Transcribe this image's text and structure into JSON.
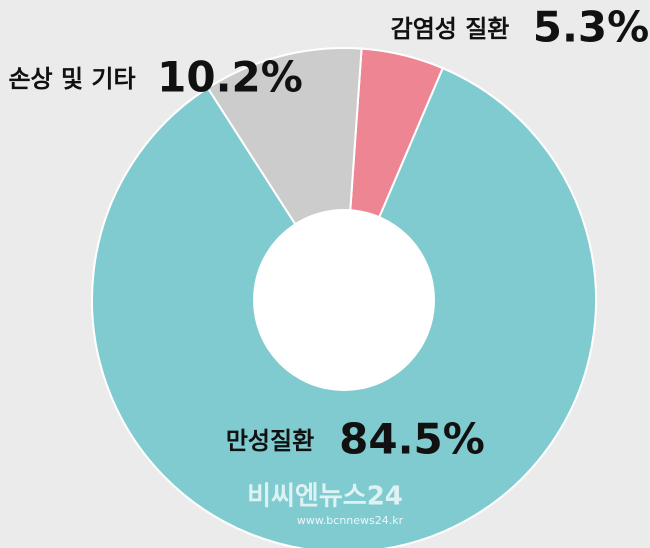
{
  "chart_data": {
    "type": "donut",
    "categories": [
      "감염성 질환",
      "만성질환",
      "손상 및 기타"
    ],
    "values": [
      5.3,
      84.5,
      10.2
    ],
    "value_labels": [
      "5.3%",
      "84.5%",
      "10.2%"
    ],
    "colors": [
      "#ee8593",
      "#80cbcf",
      "#cccccc"
    ]
  },
  "watermark": {
    "name": "비씨엔뉴스24",
    "url": "www.bcnnews24.kr"
  }
}
